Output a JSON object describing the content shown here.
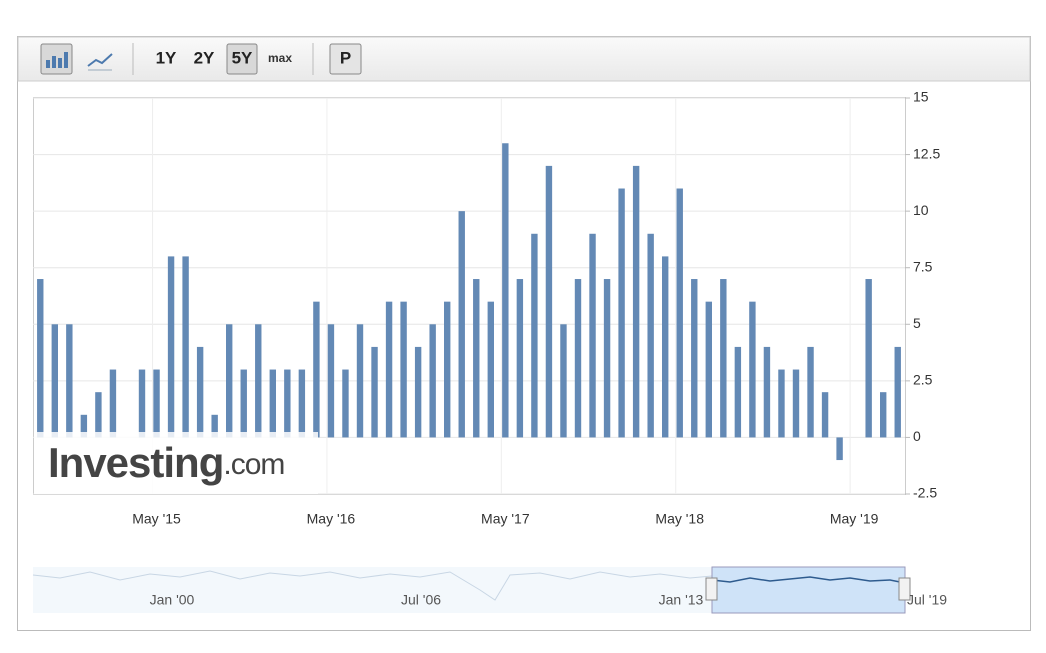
{
  "toolbar": {
    "ranges": [
      "1Y",
      "2Y",
      "5Y",
      "max"
    ],
    "selected_range": "5Y",
    "button": "P"
  },
  "watermark": {
    "brand": "Investing",
    "suffix": ".com"
  },
  "navigator": {
    "labels": [
      "Jan '00",
      "Jul '06",
      "Jan '13",
      "Jul '19"
    ]
  },
  "chart_data": {
    "type": "bar",
    "color": "#6389b5",
    "categories": [
      null,
      null,
      null,
      null,
      null,
      null,
      null,
      null,
      "May '15",
      null,
      null,
      null,
      null,
      null,
      null,
      null,
      null,
      null,
      null,
      null,
      "May '16",
      null,
      null,
      null,
      null,
      null,
      null,
      null,
      null,
      null,
      null,
      null,
      "May '17",
      null,
      null,
      null,
      null,
      null,
      null,
      null,
      null,
      null,
      null,
      null,
      "May '18",
      null,
      null,
      null,
      null,
      null,
      null,
      null,
      null,
      null,
      null,
      null,
      "May '19",
      null,
      null,
      null
    ],
    "values": [
      7,
      5,
      5,
      1,
      2,
      3,
      0,
      3,
      3,
      8,
      8,
      4,
      1,
      5,
      3,
      5,
      3,
      3,
      3,
      6,
      5,
      3,
      5,
      4,
      6,
      6,
      4,
      5,
      6,
      10,
      7,
      6,
      13,
      7,
      9,
      12,
      5,
      7,
      9,
      7,
      11,
      12,
      9,
      8,
      11,
      7,
      6,
      7,
      4,
      6,
      4,
      3,
      3,
      4,
      2,
      -1,
      0,
      7,
      2,
      4
    ],
    "ylim": [
      -2.5,
      15
    ],
    "yticks": [
      15,
      12.5,
      10,
      7.5,
      5,
      2.5,
      0,
      -2.5
    ],
    "grid": true
  }
}
